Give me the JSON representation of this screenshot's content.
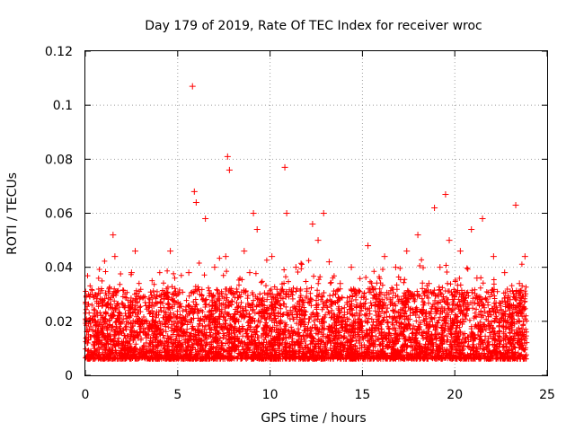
{
  "chart_data": {
    "type": "scatter",
    "title": "Day 179 of 2019, Rate Of TEC Index for receiver wroc",
    "xlabel": "GPS time / hours",
    "ylabel": "ROTI / TECUs",
    "xlim": [
      0,
      25
    ],
    "ylim": [
      0,
      0.12
    ],
    "xticks": [
      0,
      5,
      10,
      15,
      20,
      25
    ],
    "xtick_labels": [
      "0",
      "5",
      "10",
      "15",
      "20",
      "25"
    ],
    "yticks": [
      0,
      0.02,
      0.04,
      0.06,
      0.08,
      0.1,
      0.12
    ],
    "ytick_labels": [
      "0",
      "0.02",
      "0.04",
      "0.06",
      "0.08",
      "0.1",
      "0.12"
    ],
    "grid": true,
    "marker": "plus",
    "color": "#ff0000",
    "series": [
      {
        "name": "ROTI",
        "points": [
          [
            0.1,
            0.012
          ],
          [
            0.3,
            0.018
          ],
          [
            0.5,
            0.024
          ],
          [
            0.7,
            0.016
          ],
          [
            0.9,
            0.028
          ],
          [
            1.1,
            0.014
          ],
          [
            1.3,
            0.032
          ],
          [
            1.5,
            0.052
          ],
          [
            1.6,
            0.044
          ],
          [
            1.8,
            0.02
          ],
          [
            2.0,
            0.01
          ],
          [
            2.2,
            0.022
          ],
          [
            2.5,
            0.038
          ],
          [
            2.7,
            0.046
          ],
          [
            3.0,
            0.018
          ],
          [
            3.3,
            0.012
          ],
          [
            3.6,
            0.026
          ],
          [
            4.0,
            0.02
          ],
          [
            4.3,
            0.03
          ],
          [
            4.6,
            0.046
          ],
          [
            5.0,
            0.016
          ],
          [
            5.3,
            0.01
          ],
          [
            5.6,
            0.038
          ],
          [
            5.8,
            0.107
          ],
          [
            5.9,
            0.068
          ],
          [
            6.0,
            0.064
          ],
          [
            6.2,
            0.03
          ],
          [
            6.5,
            0.058
          ],
          [
            6.8,
            0.022
          ],
          [
            7.0,
            0.04
          ],
          [
            7.3,
            0.018
          ],
          [
            7.6,
            0.044
          ],
          [
            7.7,
            0.081
          ],
          [
            7.8,
            0.076
          ],
          [
            8.0,
            0.03
          ],
          [
            8.3,
            0.02
          ],
          [
            8.6,
            0.046
          ],
          [
            8.9,
            0.038
          ],
          [
            9.1,
            0.06
          ],
          [
            9.3,
            0.054
          ],
          [
            9.5,
            0.026
          ],
          [
            9.8,
            0.018
          ],
          [
            10.1,
            0.044
          ],
          [
            10.4,
            0.03
          ],
          [
            10.8,
            0.077
          ],
          [
            10.9,
            0.06
          ],
          [
            11.1,
            0.024
          ],
          [
            11.4,
            0.04
          ],
          [
            11.7,
            0.02
          ],
          [
            12.0,
            0.032
          ],
          [
            12.3,
            0.056
          ],
          [
            12.6,
            0.05
          ],
          [
            12.9,
            0.06
          ],
          [
            13.2,
            0.042
          ],
          [
            13.5,
            0.022
          ],
          [
            13.8,
            0.034
          ],
          [
            14.1,
            0.018
          ],
          [
            14.4,
            0.04
          ],
          [
            14.7,
            0.026
          ],
          [
            15.0,
            0.014
          ],
          [
            15.3,
            0.048
          ],
          [
            15.6,
            0.032
          ],
          [
            15.9,
            0.02
          ],
          [
            16.2,
            0.044
          ],
          [
            16.5,
            0.028
          ],
          [
            16.8,
            0.04
          ],
          [
            17.1,
            0.018
          ],
          [
            17.4,
            0.046
          ],
          [
            17.7,
            0.03
          ],
          [
            18.0,
            0.052
          ],
          [
            18.3,
            0.024
          ],
          [
            18.6,
            0.034
          ],
          [
            18.9,
            0.062
          ],
          [
            19.2,
            0.04
          ],
          [
            19.5,
            0.067
          ],
          [
            19.7,
            0.05
          ],
          [
            20.0,
            0.03
          ],
          [
            20.3,
            0.046
          ],
          [
            20.6,
            0.022
          ],
          [
            20.9,
            0.054
          ],
          [
            21.2,
            0.036
          ],
          [
            21.5,
            0.058
          ],
          [
            21.8,
            0.026
          ],
          [
            22.1,
            0.044
          ],
          [
            22.4,
            0.018
          ],
          [
            22.7,
            0.038
          ],
          [
            23.0,
            0.028
          ],
          [
            23.3,
            0.063
          ],
          [
            23.5,
            0.034
          ],
          [
            23.8,
            0.044
          ]
        ]
      }
    ]
  }
}
